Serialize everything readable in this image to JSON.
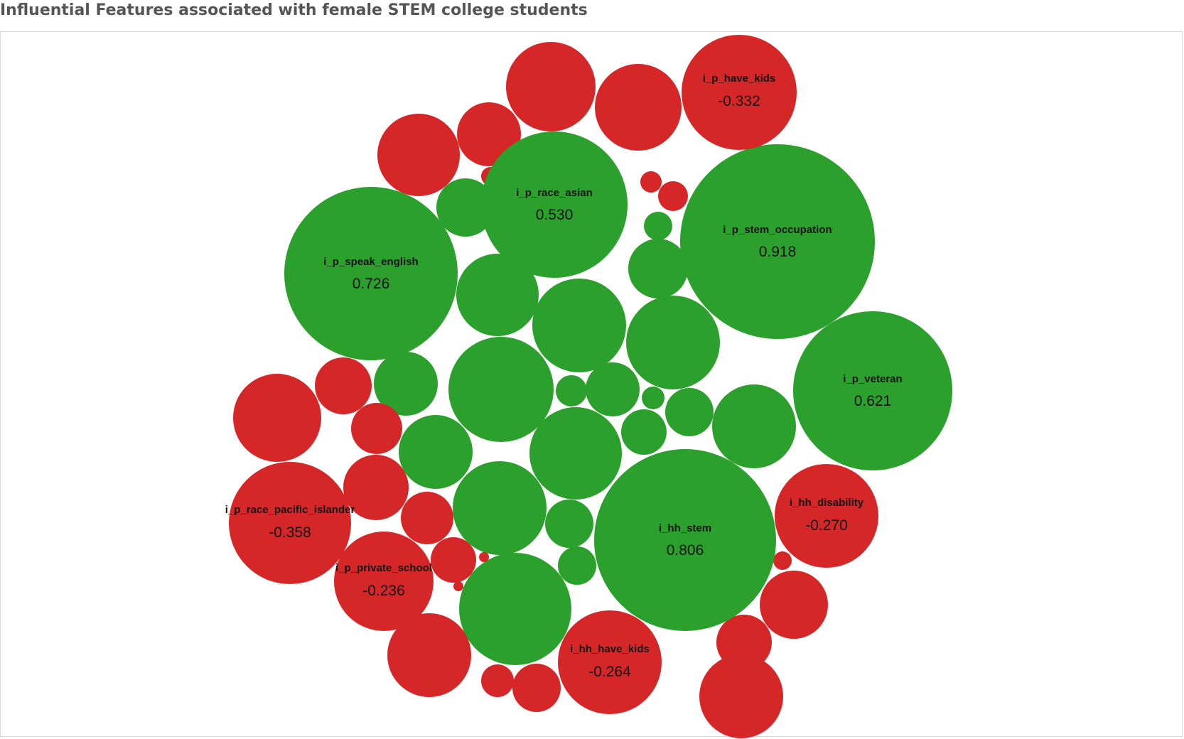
{
  "chart_data": {
    "type": "bubble",
    "title": "Influential Features associated with female STEM college students",
    "colors": {
      "positive": "#2ca02c",
      "negative": "#d62728"
    },
    "labeled": [
      {
        "name": "i_p_stem_occupation",
        "value": 0.918
      },
      {
        "name": "i_hh_stem",
        "value": 0.806
      },
      {
        "name": "i_p_speak_english",
        "value": 0.726
      },
      {
        "name": "i_p_veteran",
        "value": 0.621
      },
      {
        "name": "i_p_race_asian",
        "value": 0.53
      },
      {
        "name": "i_p_race_pacific_islander",
        "value": -0.358
      },
      {
        "name": "i_p_have_kids",
        "value": -0.332
      },
      {
        "name": "i_hh_disability",
        "value": -0.27
      },
      {
        "name": "i_hh_have_kids",
        "value": -0.264
      },
      {
        "name": "i_p_private_school",
        "value": -0.236
      }
    ],
    "labeled_display": [
      {
        "name": "i_p_stem_occupation",
        "value": "0.918"
      },
      {
        "name": "i_hh_stem",
        "value": "0.806"
      },
      {
        "name": "i_p_speak_english",
        "value": "0.726"
      },
      {
        "name": "i_p_veteran",
        "value": "0.621"
      },
      {
        "name": "i_p_race_asian",
        "value": "0.530"
      },
      {
        "name": "i_p_race_pacific_islander",
        "value": "-0.358"
      },
      {
        "name": "i_p_have_kids",
        "value": "-0.332"
      },
      {
        "name": "i_hh_disability",
        "value": "-0.270"
      },
      {
        "name": "i_hh_have_kids",
        "value": "-0.264"
      },
      {
        "name": "i_p_private_school",
        "value": "-0.236"
      }
    ]
  }
}
